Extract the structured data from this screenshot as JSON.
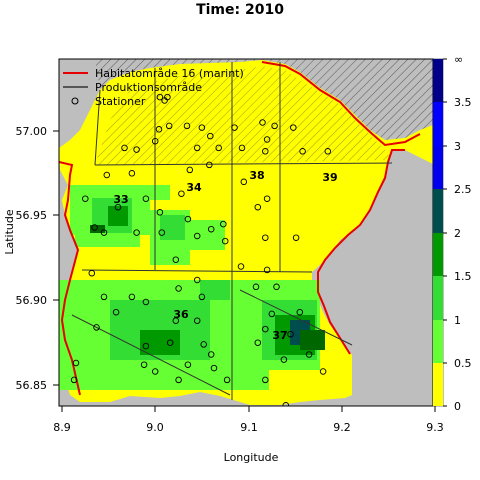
{
  "title": "Time: 2010",
  "xlabel": "Longitude",
  "ylabel": "Latitude",
  "x_ticks": [
    "8.9",
    "9.0",
    "9.1",
    "9.2",
    "9.3"
  ],
  "y_ticks": [
    "56.85",
    "56.90",
    "56.95",
    "57.00"
  ],
  "legend": {
    "items": [
      {
        "label": "Habitatområde 16 (marint)",
        "symbol": "line",
        "color": "#e60000"
      },
      {
        "label": "Produktionsområde",
        "symbol": "line",
        "color": "#333333"
      },
      {
        "label": "Stationer",
        "symbol": "circle",
        "color": "#000000"
      }
    ]
  },
  "area_labels": [
    "33",
    "34",
    "38",
    "39",
    "36",
    "37"
  ],
  "colorbar": {
    "ticks": [
      "0",
      "0.5",
      "1",
      "1.5",
      "2",
      "2.5",
      "3",
      "3.5",
      "∞"
    ],
    "colors": [
      "#ffff00",
      "#66ff33",
      "#33dd33",
      "#009900",
      "#006600",
      "#004d4d",
      "#0000ee",
      "#0000ff",
      "#000088"
    ]
  },
  "colors": {
    "land": "#bebebe",
    "sea_low": "#ffff00",
    "habitat_border": "#e60000",
    "production_border": "#333333"
  },
  "chart_data": {
    "type": "heatmap",
    "title": "Time: 2010",
    "xlabel": "Longitude",
    "ylabel": "Latitude",
    "xlim": [
      8.9,
      9.3
    ],
    "ylim": [
      56.835,
      57.04
    ],
    "colorbar_range": [
      0,
      3.75
    ],
    "colorbar_ticks": [
      0,
      0.5,
      1,
      1.5,
      2,
      2.5,
      3,
      3.5
    ],
    "areas": [
      {
        "label": "33",
        "lon": 8.955,
        "lat": 56.958
      },
      {
        "label": "34",
        "lon": 9.035,
        "lat": 56.968
      },
      {
        "label": "38",
        "lon": 9.108,
        "lat": 56.973
      },
      {
        "label": "39",
        "lon": 9.176,
        "lat": 56.971
      },
      {
        "label": "36",
        "lon": 9.028,
        "lat": 56.888
      },
      {
        "label": "37",
        "lon": 9.122,
        "lat": 56.877
      }
    ],
    "stations": [
      [
        9.005,
        57.02
      ],
      [
        9.013,
        57.02
      ],
      [
        9.01,
        57.018
      ],
      [
        9.004,
        57.001
      ],
      [
        9.015,
        57.003
      ],
      [
        9.034,
        57.003
      ],
      [
        9.05,
        57.002
      ],
      [
        9.059,
        56.997
      ],
      [
        9.085,
        57.002
      ],
      [
        9.115,
        57.005
      ],
      [
        9.128,
        57.003
      ],
      [
        9.148,
        57.002
      ],
      [
        9.12,
        56.995
      ],
      [
        8.967,
        56.99
      ],
      [
        8.98,
        56.989
      ],
      [
        9.0,
        56.994
      ],
      [
        9.045,
        56.99
      ],
      [
        9.068,
        56.99
      ],
      [
        9.093,
        56.99
      ],
      [
        9.118,
        56.988
      ],
      [
        9.158,
        56.988
      ],
      [
        9.185,
        56.988
      ],
      [
        8.948,
        56.974
      ],
      [
        8.975,
        56.975
      ],
      [
        9.037,
        56.977
      ],
      [
        9.058,
        56.98
      ],
      [
        8.925,
        56.96
      ],
      [
        8.96,
        56.955
      ],
      [
        8.99,
        56.96
      ],
      [
        9.095,
        56.97
      ],
      [
        9.12,
        56.96
      ],
      [
        9.028,
        56.963
      ],
      [
        9.005,
        56.952
      ],
      [
        9.035,
        56.948
      ],
      [
        9.06,
        56.942
      ],
      [
        9.11,
        56.955
      ],
      [
        9.073,
        56.945
      ],
      [
        9.075,
        56.935
      ],
      [
        8.935,
        56.943
      ],
      [
        8.945,
        56.94
      ],
      [
        8.98,
        56.94
      ],
      [
        9.045,
        56.938
      ],
      [
        9.007,
        56.94
      ],
      [
        9.118,
        56.937
      ],
      [
        9.151,
        56.937
      ],
      [
        9.092,
        56.92
      ],
      [
        9.12,
        56.918
      ],
      [
        8.932,
        56.916
      ],
      [
        9.022,
        56.924
      ],
      [
        9.045,
        56.912
      ],
      [
        9.025,
        56.907
      ],
      [
        9.05,
        56.902
      ],
      [
        8.945,
        56.902
      ],
      [
        8.975,
        56.902
      ],
      [
        8.99,
        56.899
      ],
      [
        9.108,
        56.908
      ],
      [
        9.13,
        56.908
      ],
      [
        8.958,
        56.893
      ],
      [
        9.022,
        56.888
      ],
      [
        9.045,
        56.888
      ],
      [
        9.125,
        56.892
      ],
      [
        9.155,
        56.893
      ],
      [
        9.016,
        56.875
      ],
      [
        9.052,
        56.874
      ],
      [
        9.118,
        56.883
      ],
      [
        9.145,
        56.88
      ],
      [
        8.937,
        56.884
      ],
      [
        8.99,
        56.873
      ],
      [
        9.06,
        56.868
      ],
      [
        9.11,
        56.875
      ],
      [
        9.165,
        56.868
      ],
      [
        8.988,
        56.862
      ],
      [
        9.0,
        56.858
      ],
      [
        9.063,
        56.86
      ],
      [
        9.138,
        56.865
      ],
      [
        8.915,
        56.863
      ],
      [
        9.035,
        56.862
      ],
      [
        9.18,
        56.858
      ],
      [
        8.913,
        56.853
      ],
      [
        9.025,
        56.853
      ],
      [
        9.077,
        56.853
      ],
      [
        9.118,
        56.853
      ],
      [
        9.14,
        56.838
      ]
    ]
  }
}
